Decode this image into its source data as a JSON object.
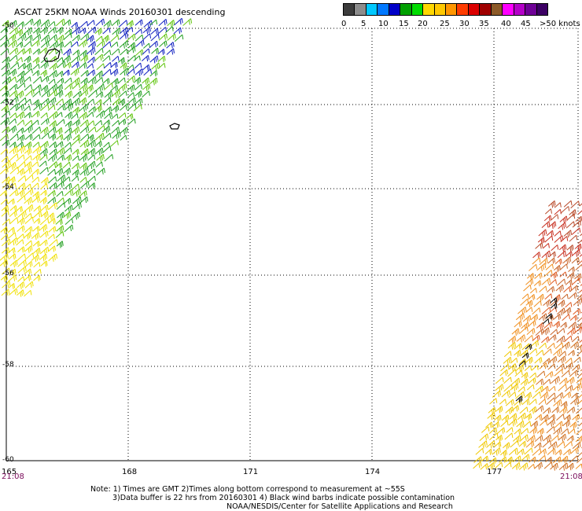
{
  "title": "ASCAT 25KM NOAA Winds 20160301 descending",
  "legend": {
    "segments": [
      {
        "color": "#3c3c3c"
      },
      {
        "color": "#8c8c8c"
      },
      {
        "color": "#00c8ff"
      },
      {
        "color": "#0078ff"
      },
      {
        "color": "#0000c8"
      },
      {
        "color": "#00a000"
      },
      {
        "color": "#00dc00"
      },
      {
        "color": "#ffd700"
      },
      {
        "color": "#ffc800"
      },
      {
        "color": "#ff9600"
      },
      {
        "color": "#ff3c00"
      },
      {
        "color": "#dc0000"
      },
      {
        "color": "#a00000"
      },
      {
        "color": "#8c5a28"
      },
      {
        "color": "#ff00ff"
      },
      {
        "color": "#b400c8"
      },
      {
        "color": "#6e0096"
      },
      {
        "color": "#3c0064"
      }
    ],
    "labels": [
      "0",
      "5",
      "10",
      "15",
      "20",
      "25",
      "30",
      "35",
      "40",
      "45",
      ">50 knots"
    ]
  },
  "map": {
    "lon_labels": [
      "165",
      "168",
      "171",
      "174",
      "177"
    ],
    "lat_labels": [
      "-50",
      "-52",
      "-54",
      "-56",
      "-58",
      "-60"
    ],
    "lat_lines": [
      -50,
      -52,
      -54,
      -56,
      -58,
      -60
    ],
    "lon_lines": [
      165,
      168,
      171,
      174,
      177,
      180
    ],
    "start_time": "21:08",
    "end_time": "21:08"
  },
  "notes": {
    "line1": "Note: 1) Times are GMT 2)Times along bottom correspond to measurement at ~55S",
    "line2": "3)Data buffer is 22 hrs from 20160301 4) Black wind barbs indicate possible contamination",
    "line3": "NOAA/NESDIS/Center for Satellite Applications and Research"
  }
}
